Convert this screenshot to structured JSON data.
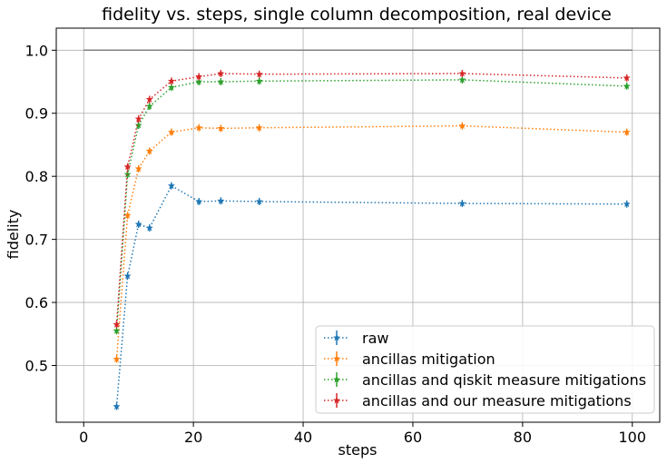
{
  "chart_data": {
    "type": "line",
    "title": "fidelity vs. steps, single column decomposition, real device",
    "xlabel": "steps",
    "ylabel": "fidelity",
    "xlim": [
      -5,
      105
    ],
    "ylim": [
      0.41,
      1.035
    ],
    "xticks": [
      0,
      20,
      40,
      60,
      80,
      100
    ],
    "xtick_labels": [
      "0",
      "20",
      "40",
      "60",
      "80",
      "100"
    ],
    "yticks": [
      0.5,
      0.6,
      0.7,
      0.8,
      0.9,
      1.0
    ],
    "ytick_labels": [
      "0.5",
      "0.6",
      "0.7",
      "0.8",
      "0.9",
      "1.0"
    ],
    "grid": true,
    "legend_position": "lower-right",
    "reference_line": {
      "y": 1.0,
      "x": [
        0,
        100
      ],
      "color": "#808080"
    },
    "x": [
      6,
      8,
      10,
      12,
      16,
      21,
      25,
      32,
      69,
      99
    ],
    "series": [
      {
        "name": "raw",
        "color": "#1f77b4",
        "values": [
          0.435,
          0.642,
          0.724,
          0.718,
          0.785,
          0.76,
          0.761,
          0.76,
          0.757,
          0.756
        ]
      },
      {
        "name": "ancillas mitigation",
        "color": "#ff7f0e",
        "values": [
          0.51,
          0.738,
          0.812,
          0.84,
          0.87,
          0.877,
          0.876,
          0.877,
          0.88,
          0.87
        ]
      },
      {
        "name": "ancillas and qiskit measure mitigations",
        "color": "#2ca02c",
        "values": [
          0.555,
          0.803,
          0.881,
          0.911,
          0.941,
          0.95,
          0.95,
          0.951,
          0.953,
          0.943
        ]
      },
      {
        "name": "ancillas and our measure mitigations",
        "color": "#d62728",
        "values": [
          0.565,
          0.815,
          0.891,
          0.922,
          0.951,
          0.958,
          0.963,
          0.962,
          0.963,
          0.956
        ]
      }
    ]
  }
}
